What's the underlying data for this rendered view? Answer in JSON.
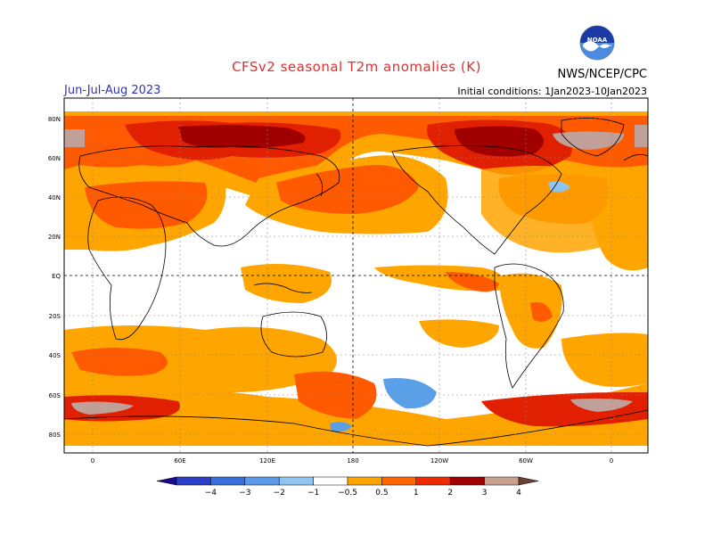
{
  "header": {
    "title": "CFSv2 seasonal T2m anomalies (K)",
    "agency": "NWS/NCEP/CPC",
    "season": "Jun-Jul-Aug 2023",
    "initial_conditions": "Initial conditions: 1Jan2023-10Jan2023",
    "logo_text": "NOAA"
  },
  "map": {
    "lat_labels": [
      "80N",
      "60N",
      "40N",
      "20N",
      "EQ",
      "20S",
      "40S",
      "60S",
      "80S"
    ],
    "lon_labels": [
      "0",
      "60E",
      "120E",
      "180",
      "120W",
      "60W",
      "0"
    ],
    "projection": "equirectangular, centered on 180"
  },
  "colorbar": {
    "labels": [
      "-4",
      "-3",
      "-2",
      "-1",
      "-0.5",
      "0.5",
      "1",
      "2",
      "3",
      "4"
    ],
    "colors": [
      "#1a0a8c",
      "#2a3fc8",
      "#3a6fe0",
      "#5a9ae8",
      "#90c4f0",
      "#ffffff",
      "#ffa500",
      "#ff6600",
      "#ee2a00",
      "#a00000",
      "#c8a090",
      "#6a4030"
    ]
  },
  "colors": {
    "title": "#e03030",
    "season": "#3030c0",
    "anomaly_0_5_1": "#ffa500",
    "anomaly_1_2": "#ff5a00",
    "anomaly_2_3": "#e02000",
    "anomaly_3_4": "#a00000",
    "anomaly_gt4": "#c0a098",
    "anomaly_neg": "#5aa0e8"
  }
}
